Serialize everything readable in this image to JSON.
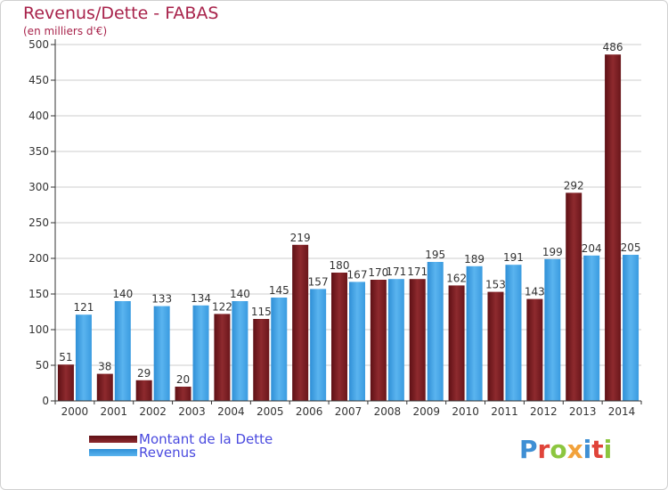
{
  "title": "Revenus/Dette - FABAS",
  "subtitle": "(en milliers d'€)",
  "brand": {
    "letters": [
      "P",
      "r",
      "o",
      "x",
      "i",
      "t",
      "i"
    ],
    "letter_colors": [
      "#3f8fd4",
      "#e0443a",
      "#8cc63f",
      "#f2a23b",
      "#3f8fd4",
      "#e0443a",
      "#8cc63f"
    ]
  },
  "colors": {
    "debt": "#7a1f24",
    "debt_light": "#9b2e31",
    "revenue": "#3d9ee0",
    "revenue_light": "#5cb3ee",
    "grid": "#cccccc",
    "axis": "#333333",
    "label": "#333333"
  },
  "chart_data": {
    "type": "bar",
    "title": "Revenus/Dette - FABAS",
    "subtitle": "(en milliers d'€)",
    "categories": [
      "2000",
      "2001",
      "2002",
      "2003",
      "2004",
      "2005",
      "2006",
      "2007",
      "2008",
      "2009",
      "2010",
      "2011",
      "2012",
      "2013",
      "2014"
    ],
    "series": [
      {
        "name": "Montant de la Dette",
        "values": [
          51,
          38,
          29,
          20,
          122,
          115,
          219,
          180,
          170,
          171,
          162,
          153,
          143,
          292,
          486
        ]
      },
      {
        "name": "Revenus",
        "values": [
          121,
          140,
          133,
          134,
          140,
          145,
          157,
          167,
          171,
          195,
          189,
          191,
          199,
          204,
          205
        ]
      }
    ],
    "ylim": [
      0,
      500
    ],
    "yticks": [
      0,
      50,
      100,
      150,
      200,
      250,
      300,
      350,
      400,
      450,
      500
    ],
    "grid": true,
    "legend": "bottom-left"
  }
}
